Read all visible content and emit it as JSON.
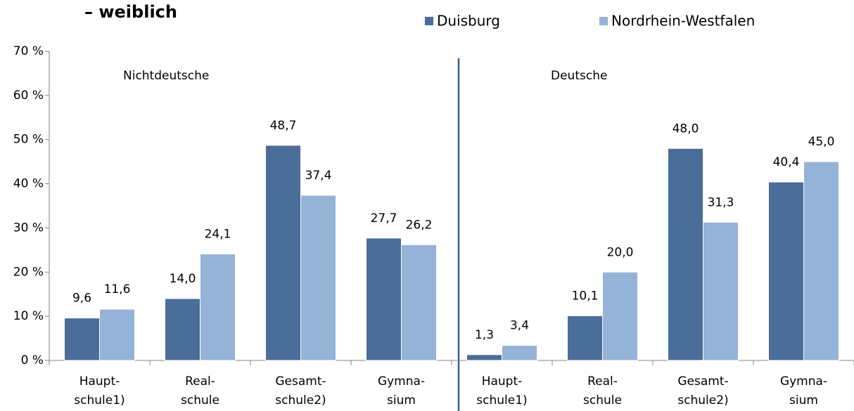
{
  "chart_data": {
    "type": "bar",
    "title": "– weiblich",
    "categories": [
      "Haupt-\nschule1)",
      "Real-\nschule",
      "Gesamt-\nschule2)",
      "Gymna-\nsium",
      "Haupt-\nschule1)",
      "Real-\nschule",
      "Gesamt-\nschule2)",
      "Gymna-\nsium"
    ],
    "series": [
      {
        "name": "Duisburg",
        "color": "#4a6d99",
        "values": [
          9.6,
          14.0,
          48.7,
          27.7,
          1.3,
          10.1,
          48.0,
          40.4
        ],
        "value_labels": [
          "9,6",
          "14,0",
          "48,7",
          "27,7",
          "1,3",
          "10,1",
          "48,0",
          "40,4"
        ]
      },
      {
        "name": "Nordrhein-Westfalen",
        "color": "#95b3d7",
        "values": [
          11.6,
          24.1,
          37.4,
          26.2,
          3.4,
          20.0,
          31.3,
          45.0
        ],
        "value_labels": [
          "11,6",
          "24,1",
          "37,4",
          "26,2",
          "3,4",
          "20,0",
          "31,3",
          "45,0"
        ]
      }
    ],
    "annotations": [
      "Nichtdeutsche",
      "Deutsche"
    ],
    "ylim": [
      0,
      70
    ],
    "yticks": [
      {
        "value": 0,
        "label": "0 %"
      },
      {
        "value": 10,
        "label": "10 %"
      },
      {
        "value": 20,
        "label": "20 %"
      },
      {
        "value": 30,
        "label": "30 %"
      },
      {
        "value": 40,
        "label": "40 %"
      },
      {
        "value": 50,
        "label": "50 %"
      },
      {
        "value": 60,
        "label": "60 %"
      },
      {
        "value": 70,
        "label": "70 %"
      }
    ],
    "grid": false
  }
}
